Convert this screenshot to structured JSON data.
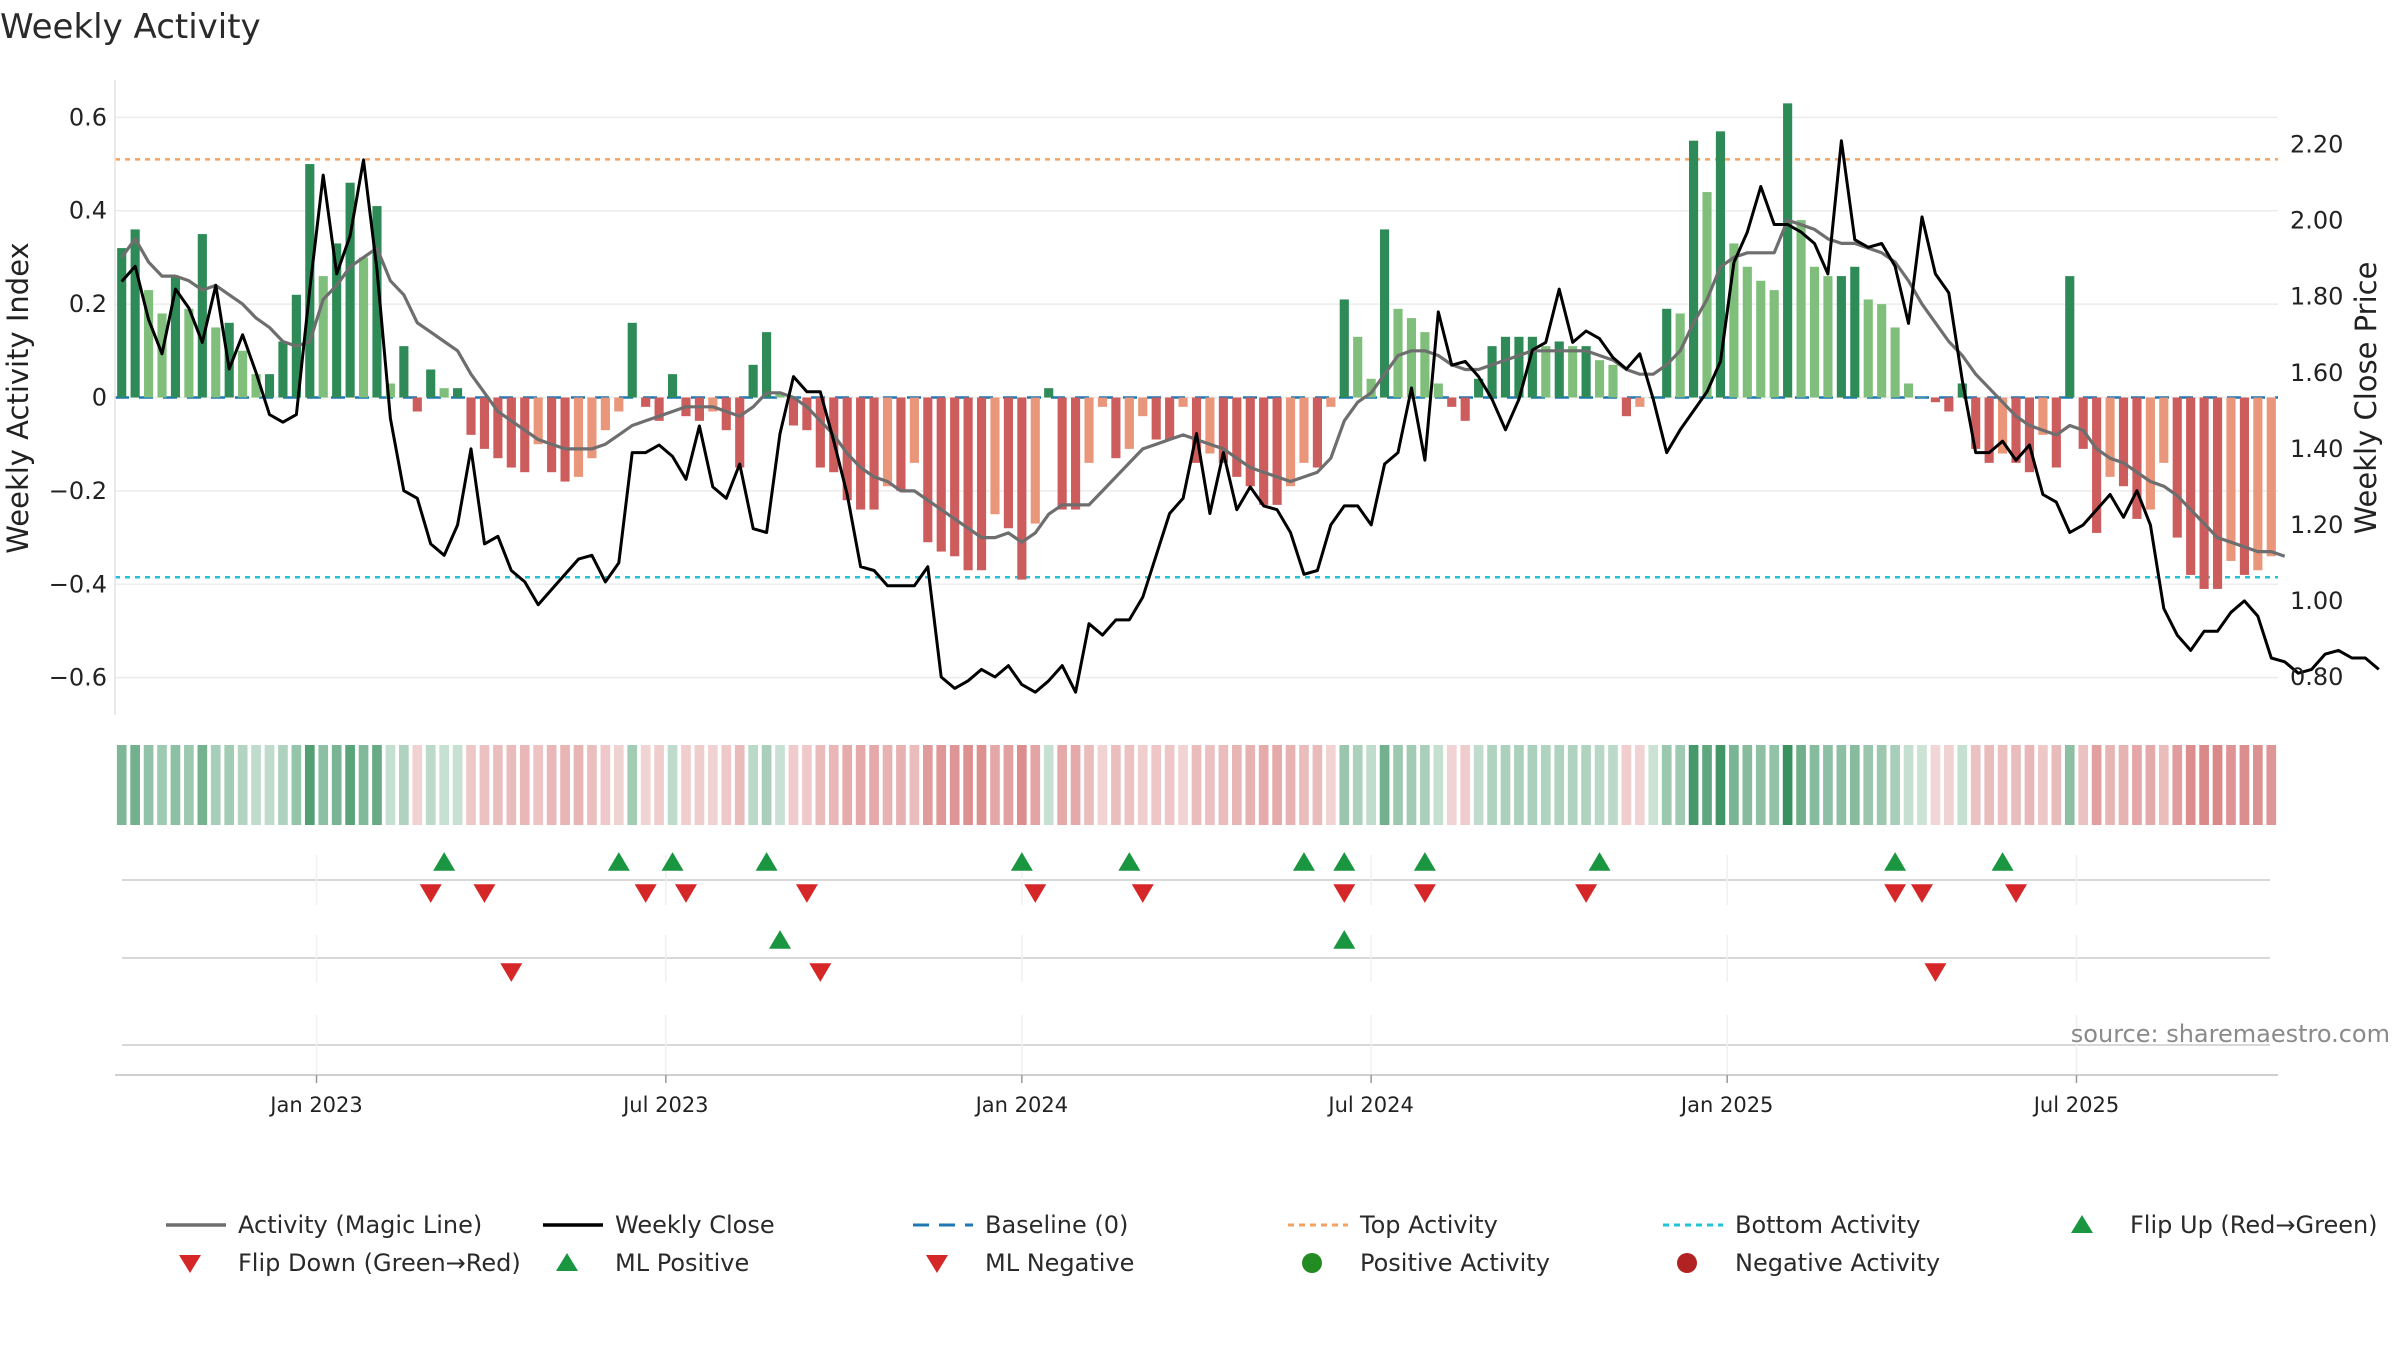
{
  "chart_data": {
    "type": "bar",
    "title": "Weekly Activity",
    "ylabel": "Weekly Activity Index",
    "y2label": "Weekly Close Price",
    "ylim": [
      -0.68,
      0.68
    ],
    "y2lim": [
      0.7,
      2.37
    ],
    "yticks": [
      {
        "v": 0.6,
        "label": "0.6"
      },
      {
        "v": 0.4,
        "label": "0.4"
      },
      {
        "v": 0.2,
        "label": "0.2"
      },
      {
        "v": 0,
        "label": "0"
      },
      {
        "v": -0.2,
        "label": "−0.2"
      },
      {
        "v": -0.4,
        "label": "−0.4"
      },
      {
        "v": -0.6,
        "label": "−0.6"
      }
    ],
    "y2ticks": [
      {
        "v": 2.2,
        "label": "2.20"
      },
      {
        "v": 2.0,
        "label": "2.00"
      },
      {
        "v": 1.8,
        "label": "1.80"
      },
      {
        "v": 1.6,
        "label": "1.60"
      },
      {
        "v": 1.4,
        "label": "1.40"
      },
      {
        "v": 1.2,
        "label": "1.20"
      },
      {
        "v": 1.0,
        "label": "1.00"
      },
      {
        "v": 0.8,
        "label": "0.80"
      }
    ],
    "date_ticks": [
      {
        "week": 15,
        "label": "Jan 2023"
      },
      {
        "week": 41,
        "label": "Jul 2023"
      },
      {
        "week": 67.5,
        "label": "Jan 2024"
      },
      {
        "week": 93.5,
        "label": "Jul 2024"
      },
      {
        "week": 120,
        "label": "Jan 2025"
      },
      {
        "week": 146,
        "label": "Jul 2025"
      }
    ],
    "top_activity": 0.51,
    "bottom_activity": -0.385,
    "baseline": 0,
    "activity": [
      0.32,
      0.36,
      0.23,
      0.18,
      0.26,
      0.19,
      0.35,
      0.15,
      0.16,
      0.1,
      0.05,
      0.05,
      0.12,
      0.22,
      0.5,
      0.26,
      0.33,
      0.46,
      0.3,
      0.41,
      0.03,
      0.11,
      -0.03,
      0.06,
      0.02,
      0.02,
      -0.08,
      -0.11,
      -0.13,
      -0.15,
      -0.16,
      -0.1,
      -0.16,
      -0.18,
      -0.17,
      -0.13,
      -0.07,
      -0.03,
      0.16,
      -0.02,
      -0.05,
      0.05,
      -0.04,
      -0.05,
      -0.03,
      -0.07,
      -0.15,
      0.07,
      0.14,
      0.01,
      -0.06,
      -0.07,
      -0.15,
      -0.16,
      -0.22,
      -0.24,
      -0.24,
      -0.19,
      -0.2,
      -0.14,
      -0.31,
      -0.33,
      -0.34,
      -0.37,
      -0.37,
      -0.25,
      -0.28,
      -0.39,
      -0.27,
      0.02,
      -0.24,
      -0.24,
      -0.14,
      -0.02,
      -0.13,
      -0.11,
      -0.04,
      -0.09,
      -0.09,
      -0.02,
      -0.14,
      -0.12,
      -0.14,
      -0.17,
      -0.19,
      -0.23,
      -0.23,
      -0.19,
      -0.14,
      -0.15,
      -0.02,
      0.21,
      0.13,
      0.04,
      0.36,
      0.19,
      0.17,
      0.14,
      0.03,
      -0.02,
      -0.05,
      0.04,
      0.11,
      0.13,
      0.13,
      0.13,
      0.11,
      0.12,
      0.11,
      0.11,
      0.08,
      0.07,
      -0.04,
      -0.02,
      0.0,
      0.19,
      0.18,
      0.55,
      0.44,
      0.57,
      0.33,
      0.28,
      0.25,
      0.23,
      0.63,
      0.38,
      0.28,
      0.26,
      0.26,
      0.28,
      0.21,
      0.2,
      0.15,
      0.03,
      0.0,
      -0.01,
      -0.03,
      0.03,
      -0.11,
      -0.14,
      -0.12,
      -0.14,
      -0.16,
      -0.08,
      -0.15,
      0.26,
      -0.11,
      -0.29,
      -0.17,
      -0.19,
      -0.26,
      -0.24,
      -0.14,
      -0.3,
      -0.38,
      -0.41,
      -0.41,
      -0.35,
      -0.38,
      -0.37,
      -0.34
    ],
    "close": [
      1.84,
      1.88,
      1.74,
      1.65,
      1.82,
      1.77,
      1.68,
      1.83,
      1.61,
      1.7,
      1.6,
      1.49,
      1.47,
      1.49,
      1.82,
      2.12,
      1.86,
      1.96,
      2.16,
      1.87,
      1.48,
      1.29,
      1.27,
      1.15,
      1.12,
      1.2,
      1.4,
      1.15,
      1.17,
      1.08,
      1.05,
      0.99,
      1.03,
      1.07,
      1.11,
      1.12,
      1.05,
      1.1,
      1.39,
      1.39,
      1.41,
      1.38,
      1.32,
      1.46,
      1.3,
      1.27,
      1.36,
      1.19,
      1.18,
      1.44,
      1.59,
      1.55,
      1.55,
      1.42,
      1.28,
      1.09,
      1.08,
      1.04,
      1.04,
      1.04,
      1.09,
      0.8,
      0.77,
      0.79,
      0.82,
      0.8,
      0.83,
      0.78,
      0.76,
      0.79,
      0.83,
      0.76,
      0.94,
      0.91,
      0.95,
      0.95,
      1.01,
      1.12,
      1.23,
      1.27,
      1.44,
      1.23,
      1.39,
      1.24,
      1.3,
      1.25,
      1.24,
      1.18,
      1.07,
      1.08,
      1.2,
      1.25,
      1.25,
      1.2,
      1.36,
      1.39,
      1.56,
      1.37,
      1.76,
      1.62,
      1.63,
      1.59,
      1.53,
      1.45,
      1.53,
      1.66,
      1.68,
      1.82,
      1.68,
      1.71,
      1.69,
      1.64,
      1.61,
      1.65,
      1.53,
      1.39,
      1.45,
      1.5,
      1.55,
      1.63,
      1.89,
      1.97,
      2.09,
      1.99,
      1.99,
      1.97,
      1.94,
      1.86,
      2.21,
      1.95,
      1.93,
      1.94,
      1.88,
      1.73,
      2.01,
      1.86,
      1.81,
      1.58,
      1.39,
      1.39,
      1.42,
      1.37,
      1.41,
      1.28,
      1.26,
      1.18,
      1.2,
      1.24,
      1.28,
      1.22,
      1.29,
      1.2,
      0.98,
      0.91,
      0.87,
      0.92,
      0.92,
      0.97,
      1.0,
      0.96,
      0.85,
      0.84,
      0.81,
      0.82,
      0.86,
      0.87,
      0.85,
      0.85,
      0.82
    ],
    "magic_line": [
      0.3,
      0.34,
      0.29,
      0.26,
      0.26,
      0.25,
      0.23,
      0.24,
      0.22,
      0.2,
      0.17,
      0.15,
      0.12,
      0.11,
      0.12,
      0.21,
      0.24,
      0.28,
      0.3,
      0.32,
      0.25,
      0.22,
      0.16,
      0.14,
      0.12,
      0.1,
      0.05,
      0.01,
      -0.03,
      -0.05,
      -0.07,
      -0.09,
      -0.1,
      -0.11,
      -0.11,
      -0.11,
      -0.1,
      -0.08,
      -0.06,
      -0.05,
      -0.04,
      -0.03,
      -0.02,
      -0.02,
      -0.02,
      -0.03,
      -0.04,
      -0.02,
      0.01,
      0.01,
      0.0,
      -0.02,
      -0.05,
      -0.08,
      -0.12,
      -0.15,
      -0.17,
      -0.18,
      -0.2,
      -0.2,
      -0.22,
      -0.24,
      -0.26,
      -0.28,
      -0.3,
      -0.3,
      -0.29,
      -0.31,
      -0.29,
      -0.25,
      -0.23,
      -0.23,
      -0.23,
      -0.2,
      -0.17,
      -0.14,
      -0.11,
      -0.1,
      -0.09,
      -0.08,
      -0.09,
      -0.1,
      -0.11,
      -0.13,
      -0.15,
      -0.16,
      -0.17,
      -0.18,
      -0.17,
      -0.16,
      -0.13,
      -0.05,
      -0.01,
      0.01,
      0.05,
      0.09,
      0.1,
      0.1,
      0.09,
      0.07,
      0.06,
      0.06,
      0.07,
      0.08,
      0.09,
      0.1,
      0.1,
      0.1,
      0.1,
      0.1,
      0.09,
      0.08,
      0.06,
      0.05,
      0.05,
      0.07,
      0.1,
      0.16,
      0.21,
      0.28,
      0.3,
      0.31,
      0.31,
      0.31,
      0.38,
      0.37,
      0.36,
      0.34,
      0.33,
      0.33,
      0.32,
      0.31,
      0.29,
      0.25,
      0.2,
      0.16,
      0.12,
      0.09,
      0.05,
      0.02,
      -0.01,
      -0.04,
      -0.06,
      -0.07,
      -0.08,
      -0.06,
      -0.07,
      -0.11,
      -0.13,
      -0.14,
      -0.16,
      -0.18,
      -0.19,
      -0.21,
      -0.24,
      -0.27,
      -0.3,
      -0.31,
      -0.32,
      -0.33,
      -0.33,
      -0.34
    ],
    "flip_up_weeks": [
      24.5,
      37.5,
      41.5,
      48.5,
      67.5,
      75.5,
      88.5,
      91.5,
      97.5,
      110.5,
      132.5,
      140.5
    ],
    "flip_down_weeks": [
      23.5,
      27.5,
      39.5,
      42.5,
      51.5,
      68.5,
      76.5,
      91.5,
      97.5,
      109.5,
      132.5,
      134.5,
      141.5
    ],
    "ml_positive_weeks": [
      49.5,
      91.5
    ],
    "ml_negative_weeks": [
      29.5,
      52.5,
      135.5
    ],
    "legend": [
      {
        "key": "magic",
        "label": "Activity (Magic Line)"
      },
      {
        "key": "close",
        "label": "Weekly Close"
      },
      {
        "key": "baseline",
        "label": "Baseline (0)"
      },
      {
        "key": "top",
        "label": "Top Activity"
      },
      {
        "key": "bottom",
        "label": "Bottom Activity"
      },
      {
        "key": "flipup",
        "label": "Flip Up (Red→Green)"
      },
      {
        "key": "flipdown",
        "label": "Flip Down (Green→Red)"
      },
      {
        "key": "mlpos",
        "label": "ML Positive"
      },
      {
        "key": "mlneg",
        "label": "ML Negative"
      },
      {
        "key": "posact",
        "label": "Positive Activity"
      },
      {
        "key": "negact",
        "label": "Negative Activity"
      }
    ],
    "source": "source: sharemaestro.com"
  },
  "colors": {
    "pos_strong": "#2e8b57",
    "pos_weak": "#7fbf7b",
    "neg_strong": "#cd5c5c",
    "neg_weak": "#e9967a",
    "magic_line": "#6e6e6e",
    "close_line": "#000000",
    "baseline": "#1f77b4",
    "top": "#f4a261",
    "bottom": "#22c4d4",
    "marker_green": "#1a9641",
    "marker_red": "#d62728",
    "dot_green": "#228b22",
    "dot_red": "#b22222"
  }
}
